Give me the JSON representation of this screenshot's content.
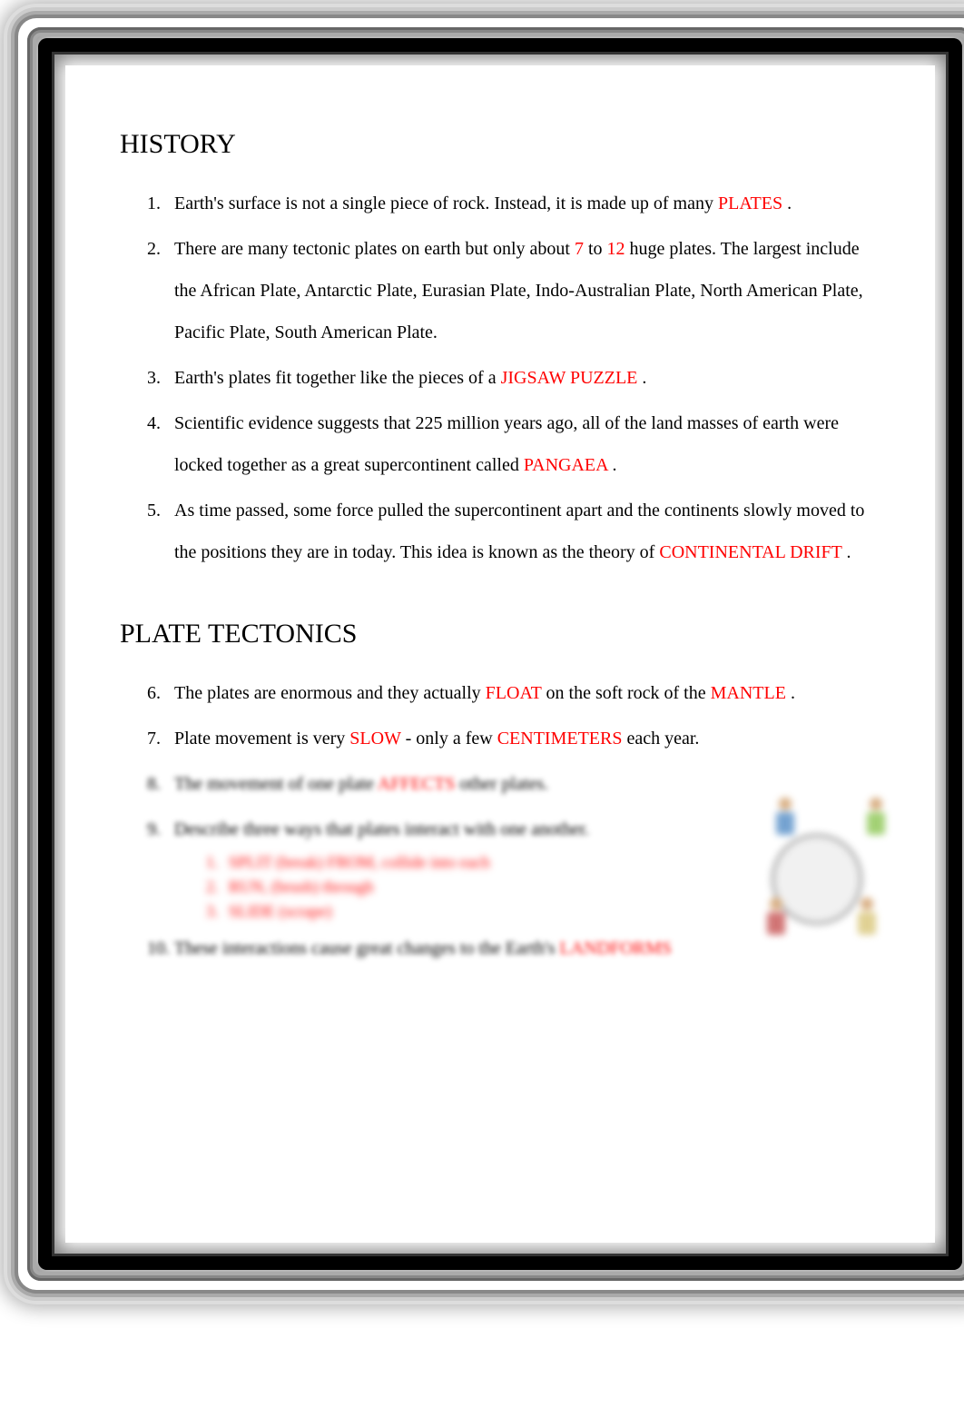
{
  "sections": {
    "history": {
      "title": "HISTORY",
      "items": {
        "i1_pre": "Earth's surface is not a single piece of rock. Instead, it is made up of many ",
        "i1_h1": "PLATES",
        "i1_post": " .",
        "i2_pre": "There are many tectonic plates on earth but only about ",
        "i2_h1": "7",
        "i2_mid1": " to ",
        "i2_h2": "12",
        "i2_post": " huge plates. The largest include the African Plate, Antarctic Plate, Eurasian Plate, Indo-Australian Plate, North American Plate, Pacific Plate, South American Plate.",
        "i3_pre": "Earth's plates fit together like the pieces of a ",
        "i3_h1": "JIGSAW PUZZLE",
        "i3_post": "  .",
        "i4_pre": "Scientific evidence suggests that 225 million years ago, all of the land masses of earth were locked together as a great supercontinent called ",
        "i4_h1": "PANGAEA",
        "i4_post": " .",
        "i5_pre": "As time passed, some force pulled the supercontinent apart and the continents slowly moved to the positions they are in today. This idea is known as the theory of ",
        "i5_h1": "CONTINENTAL DRIFT",
        "i5_post": "  ."
      }
    },
    "plate_tectonics": {
      "title": "PLATE TECTONICS",
      "items": {
        "i6_pre": "The plates are enormous and they actually ",
        "i6_h1": "FLOAT",
        "i6_mid1": "  on the soft rock of the ",
        "i6_h2": "MANTLE",
        "i6_post": " .",
        "i7_pre": "Plate movement is very ",
        "i7_h1": "SLOW",
        "i7_mid1": " - only a few ",
        "i7_h2": "CENTIMETERS",
        "i7_post": "  each year.",
        "i8_pre": "The movement of one plate ",
        "i8_h1": "AFFECTS",
        "i8_post": " other plates.",
        "i9_text": "Describe three ways that plates interact with one another.",
        "i9_sub1": "SPLIT (break) FROM, collide into each",
        "i9_sub2": "RUN, (brush) through",
        "i9_sub3": "SLIDE (scrape)",
        "i10_pre": "These interactions cause great changes to the Earth's ",
        "i10_h1": "LANDFORMS"
      }
    }
  },
  "colors": {
    "highlight": "#ff0000",
    "text": "#000000",
    "background": "#ffffff"
  },
  "typography": {
    "title_fontsize": 30,
    "body_fontsize": 20,
    "font_family": "Georgia, Times New Roman, serif"
  }
}
